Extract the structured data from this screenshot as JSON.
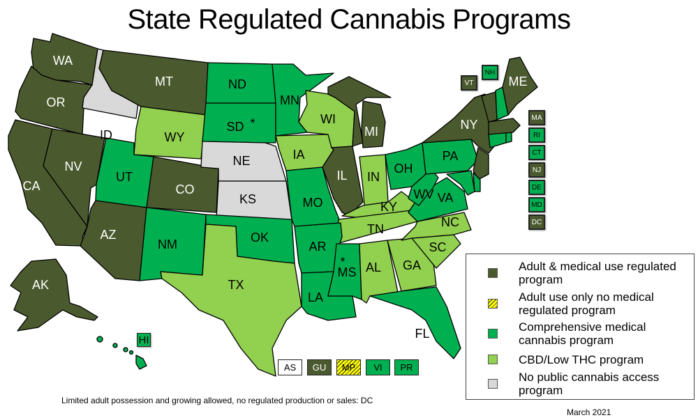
{
  "title": "State Regulated Cannabis Programs",
  "colors": {
    "adult_medical": "#4b5a2e",
    "adult_only": "#ffff00",
    "comprehensive": "#00b050",
    "cbd_low_thc": "#92d050",
    "none": "#d9d9d9"
  },
  "legend": {
    "items": [
      {
        "key": "adult_medical",
        "label": "Adult & medical use regulated program"
      },
      {
        "key": "adult_only",
        "label": "Adult use only no medical regulated program"
      },
      {
        "key": "comprehensive",
        "label": "Comprehensive medical cannabis program"
      },
      {
        "key": "cbd_low_thc",
        "label": "CBD/Low THC program"
      },
      {
        "key": "none",
        "label": "No public cannabis access program"
      }
    ]
  },
  "states": {
    "WA": "adult_medical",
    "OR": "adult_medical",
    "CA": "adult_medical",
    "NV": "adult_medical",
    "AZ": "adult_medical",
    "MT": "adult_medical",
    "CO": "adult_medical",
    "AK": "adult_medical",
    "IL": "adult_medical",
    "MI": "adult_medical",
    "NY": "adult_medical",
    "VT": "adult_medical",
    "ME": "adult_medical",
    "MA": "adult_medical",
    "NJ": "adult_medical",
    "DC": "adult_medical",
    "ID": "none",
    "NE": "none",
    "KS": "none",
    "WY": "cbd_low_thc",
    "TX": "cbd_low_thc",
    "IA": "cbd_low_thc",
    "WI": "cbd_low_thc",
    "IN": "cbd_low_thc",
    "KY": "cbd_low_thc",
    "TN": "cbd_low_thc",
    "NC": "cbd_low_thc",
    "SC": "cbd_low_thc",
    "GA": "cbd_low_thc",
    "AL": "cbd_low_thc",
    "UT": "comprehensive",
    "NM": "comprehensive",
    "ND": "comprehensive",
    "SD": "comprehensive",
    "MN": "comprehensive",
    "OK": "comprehensive",
    "MO": "comprehensive",
    "AR": "comprehensive",
    "LA": "comprehensive",
    "MS": "comprehensive",
    "FL": "comprehensive",
    "OH": "comprehensive",
    "WV": "comprehensive",
    "VA": "comprehensive",
    "PA": "comprehensive",
    "NH": "comprehensive",
    "RI": "comprehensive",
    "CT": "comprehensive",
    "DE": "comprehensive",
    "MD": "comprehensive",
    "HI": "comprehensive"
  },
  "annotations": {
    "SD": "*",
    "MS": "*"
  },
  "east_coast_boxes": [
    {
      "code": "MA",
      "status": "adult_medical"
    },
    {
      "code": "RI",
      "status": "comprehensive"
    },
    {
      "code": "CT",
      "status": "comprehensive"
    },
    {
      "code": "NJ",
      "status": "adult_medical"
    },
    {
      "code": "DE",
      "status": "comprehensive"
    },
    {
      "code": "MD",
      "status": "comprehensive"
    },
    {
      "code": "DC",
      "status": "adult_medical"
    }
  ],
  "callout_boxes": [
    {
      "code": "VT",
      "status": "adult_medical"
    },
    {
      "code": "NH",
      "status": "comprehensive"
    },
    {
      "code": "HI",
      "status": "comprehensive"
    }
  ],
  "territories": [
    {
      "code": "AS",
      "status": "white"
    },
    {
      "code": "GU",
      "status": "adult_medical"
    },
    {
      "code": "MP",
      "status": "adult_only"
    },
    {
      "code": "VI",
      "status": "comprehensive"
    },
    {
      "code": "PR",
      "status": "comprehensive"
    }
  ],
  "footnote": "Limited adult possession and growing allowed, no regulated production or sales: DC",
  "date": "March 2021"
}
